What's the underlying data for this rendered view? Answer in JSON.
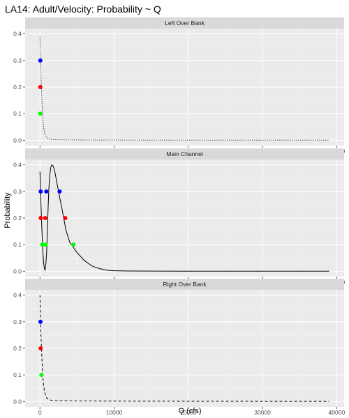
{
  "chart_data": {
    "type": "line",
    "title": "LA14: Adult/Velocity: Probability ~ Q",
    "xlabel": "Q (cfs)",
    "ylabel": "Probability",
    "x_ticks": [
      0,
      10000,
      20000,
      30000,
      40000
    ],
    "xlim": [
      -2000,
      41000
    ],
    "y_ticks": [
      0.0,
      0.1,
      0.2,
      0.3,
      0.4
    ],
    "ylim": [
      -0.02,
      0.42
    ],
    "grid": true,
    "legend": "none",
    "marker_colors": {
      "0.1": "#00ff00",
      "0.2": "#ff0000",
      "0.3": "#0000ff"
    },
    "panels": [
      {
        "strip": "Left Over Bank",
        "line_style": "dotted",
        "curve": [
          [
            0,
            0.39
          ],
          [
            20,
            0.36
          ],
          [
            50,
            0.32
          ],
          [
            100,
            0.27
          ],
          [
            150,
            0.23
          ],
          [
            200,
            0.19
          ],
          [
            300,
            0.13
          ],
          [
            400,
            0.08
          ],
          [
            500,
            0.05
          ],
          [
            600,
            0.03
          ],
          [
            800,
            0.015
          ],
          [
            1000,
            0.008
          ],
          [
            1500,
            0.003
          ],
          [
            2000,
            0.002
          ],
          [
            5000,
            0.001
          ],
          [
            10000,
            0.0005
          ],
          [
            20000,
            0.0003
          ],
          [
            39000,
            0.0002
          ]
        ],
        "points": [
          {
            "x": 50,
            "y": 0.3,
            "level": "0.3"
          },
          {
            "x": 50,
            "y": 0.2,
            "level": "0.2"
          },
          {
            "x": 50,
            "y": 0.1,
            "level": "0.1"
          }
        ]
      },
      {
        "strip": "Main Channel",
        "line_style": "solid",
        "curve": [
          [
            0,
            0.375
          ],
          [
            50,
            0.32
          ],
          [
            100,
            0.28
          ],
          [
            200,
            0.2
          ],
          [
            300,
            0.13
          ],
          [
            400,
            0.07
          ],
          [
            500,
            0.03
          ],
          [
            600,
            0.01
          ],
          [
            700,
            0.005
          ],
          [
            800,
            0.03
          ],
          [
            900,
            0.07
          ],
          [
            1000,
            0.15
          ],
          [
            1100,
            0.24
          ],
          [
            1200,
            0.31
          ],
          [
            1300,
            0.355
          ],
          [
            1450,
            0.39
          ],
          [
            1600,
            0.4
          ],
          [
            1800,
            0.395
          ],
          [
            2000,
            0.375
          ],
          [
            2200,
            0.345
          ],
          [
            2500,
            0.3
          ],
          [
            3000,
            0.23
          ],
          [
            3500,
            0.155
          ],
          [
            4000,
            0.11
          ],
          [
            4500,
            0.09
          ],
          [
            5000,
            0.07
          ],
          [
            6000,
            0.04
          ],
          [
            7000,
            0.02
          ],
          [
            8000,
            0.01
          ],
          [
            9000,
            0.004
          ],
          [
            10000,
            0.002
          ],
          [
            12000,
            0.001
          ],
          [
            15000,
            0.0005
          ],
          [
            20000,
            0.0003
          ],
          [
            30000,
            0.0002
          ],
          [
            39000,
            0.0002
          ]
        ],
        "points": [
          {
            "x": 100,
            "y": 0.3,
            "level": "0.3"
          },
          {
            "x": 850,
            "y": 0.3,
            "level": "0.3"
          },
          {
            "x": 2650,
            "y": 0.3,
            "level": "0.3"
          },
          {
            "x": 100,
            "y": 0.2,
            "level": "0.2"
          },
          {
            "x": 700,
            "y": 0.2,
            "level": "0.2"
          },
          {
            "x": 3400,
            "y": 0.2,
            "level": "0.2"
          },
          {
            "x": 300,
            "y": 0.1,
            "level": "0.1"
          },
          {
            "x": 750,
            "y": 0.1,
            "level": "0.1"
          },
          {
            "x": 4500,
            "y": 0.1,
            "level": "0.1"
          }
        ]
      },
      {
        "strip": "Right Over Bank",
        "line_style": "dashed",
        "curve": [
          [
            0,
            0.4
          ],
          [
            20,
            0.37
          ],
          [
            50,
            0.33
          ],
          [
            100,
            0.28
          ],
          [
            150,
            0.24
          ],
          [
            200,
            0.2
          ],
          [
            300,
            0.14
          ],
          [
            400,
            0.09
          ],
          [
            500,
            0.06
          ],
          [
            600,
            0.04
          ],
          [
            800,
            0.02
          ],
          [
            1000,
            0.01
          ],
          [
            1500,
            0.005
          ],
          [
            2000,
            0.003
          ],
          [
            5000,
            0.002
          ],
          [
            10000,
            0.0015
          ],
          [
            20000,
            0.001
          ],
          [
            39000,
            0.0005
          ]
        ],
        "points": [
          {
            "x": 70,
            "y": 0.3,
            "level": "0.3"
          },
          {
            "x": 100,
            "y": 0.2,
            "level": "0.2"
          },
          {
            "x": 200,
            "y": 0.1,
            "level": "0.1"
          }
        ]
      }
    ]
  }
}
